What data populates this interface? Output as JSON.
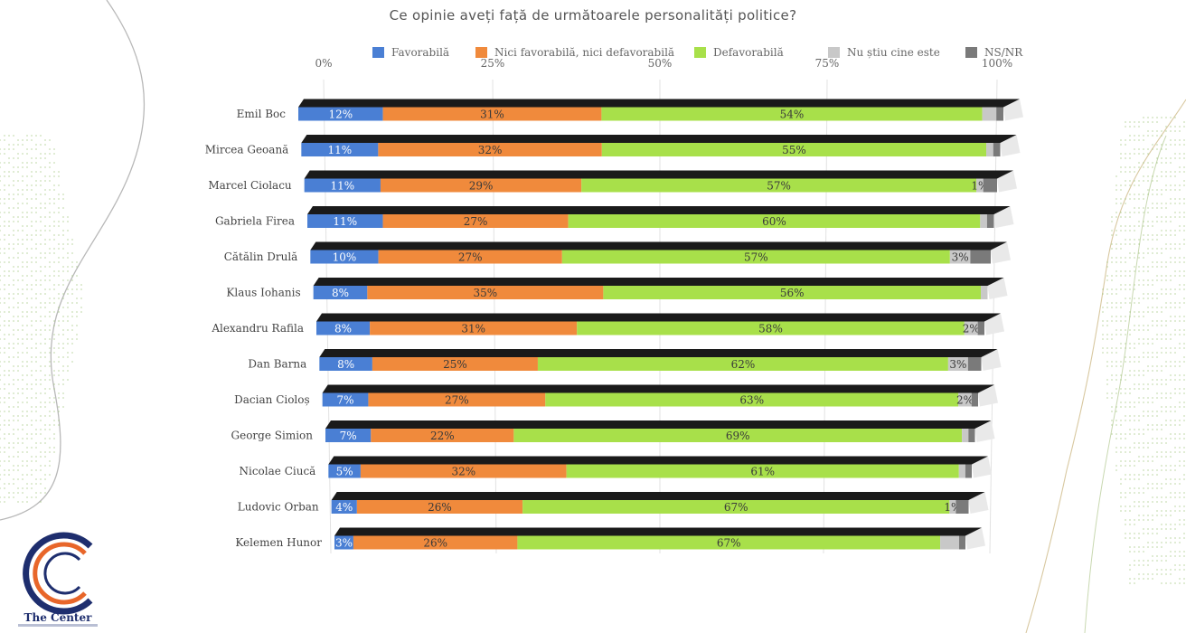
{
  "page": {
    "title": "Ce opinie aveți față de următoarele personalități politice?",
    "brand": "The Center"
  },
  "colors": {
    "favorabila": "#4a7fd4",
    "neutral": "#f08a3c",
    "defavorabila": "#a8e04a",
    "nu_stiu": "#c8c8c8",
    "nsnr": "#7a7a7a"
  },
  "chart_data": {
    "type": "bar",
    "orientation": "horizontal",
    "stacked": true,
    "percent": true,
    "title": "Ce opinie aveți față de următoarele personalități politice?",
    "xlim": [
      0,
      100
    ],
    "xticks": [
      "0%",
      "25%",
      "50%",
      "75%",
      "100%"
    ],
    "legend_position": "top",
    "grid": true,
    "categories": [
      "Emil Boc",
      "Mircea Geoană",
      "Marcel Ciolacu",
      "Gabriela Firea",
      "Cătălin Drulă",
      "Klaus Iohanis",
      "Alexandru Rafila",
      "Dan Barna",
      "Dacian Cioloș",
      "George Simion",
      "Nicolae Ciucă",
      "Ludovic Orban",
      "Kelemen Hunor"
    ],
    "series": [
      {
        "name": "Favorabilă",
        "color": "#4a7fd4",
        "values": [
          12,
          11,
          11,
          11,
          10,
          8,
          8,
          8,
          7,
          7,
          5,
          4,
          3
        ],
        "labels": [
          "12%",
          "11%",
          "11%",
          "11%",
          "10%",
          "8%",
          "8%",
          "8%",
          "7%",
          "7%",
          "5%",
          "4%",
          "3%"
        ]
      },
      {
        "name": "Nici favorabilă, nici defavorabilă",
        "color": "#f08a3c",
        "values": [
          31,
          32,
          29,
          27,
          27,
          35,
          31,
          25,
          27,
          22,
          32,
          26,
          26
        ],
        "labels": [
          "31%",
          "32%",
          "29%",
          "27%",
          "27%",
          "35%",
          "31%",
          "25%",
          "27%",
          "22%",
          "32%",
          "26%",
          "26%"
        ]
      },
      {
        "name": "Defavorabilă",
        "color": "#a8e04a",
        "values": [
          54,
          55,
          57,
          60,
          57,
          56,
          58,
          62,
          63,
          69,
          61,
          67,
          67
        ],
        "labels": [
          "54%",
          "55%",
          "57%",
          "60%",
          "57%",
          "56%",
          "58%",
          "62%",
          "63%",
          "69%",
          "61%",
          "67%",
          "67%"
        ]
      },
      {
        "name": "Nu știu cine este",
        "color": "#c8c8c8",
        "values": [
          2,
          1,
          1,
          1,
          3,
          1,
          2,
          3,
          2,
          1,
          1,
          1,
          3
        ],
        "labels": [
          "",
          "",
          "1%",
          "",
          "3%",
          "",
          "2%",
          "3%",
          "2%",
          "",
          "",
          "1%",
          ""
        ]
      },
      {
        "name": "NS/NR",
        "color": "#7a7a7a",
        "values": [
          1,
          1,
          2,
          1,
          3,
          0,
          1,
          2,
          1,
          1,
          1,
          2,
          1
        ],
        "labels": [
          "",
          "",
          "",
          "",
          "",
          "",
          "",
          "",
          "",
          "",
          "",
          "",
          ""
        ]
      }
    ]
  }
}
